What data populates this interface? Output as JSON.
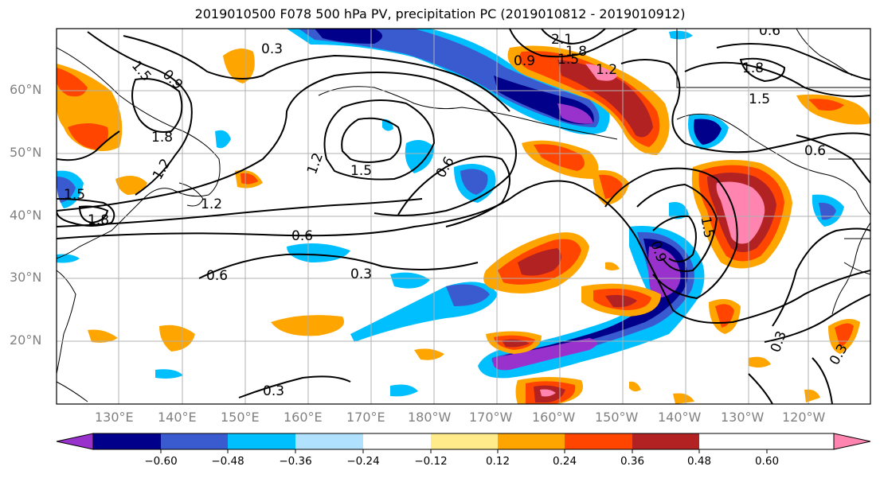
{
  "title": "2019010500 F078 500 hPa PV, precipitation PC (2019010812 - 2019010912)",
  "lat_labels": [
    "60°N",
    "50°N",
    "40°N",
    "30°N",
    "20°N"
  ],
  "lon_labels": [
    "130°E",
    "140°E",
    "150°E",
    "160°E",
    "170°E",
    "180°W",
    "170°W",
    "160°W",
    "150°W",
    "140°W",
    "130°W",
    "120°W"
  ],
  "contour_labels": [
    "0.3",
    "0.9",
    "1.5",
    "1.8",
    "2.1",
    "1.8",
    "1.5",
    "1.2",
    "0.9",
    "0.6",
    "1.5",
    "1.8",
    "1.2",
    "1.2",
    "1.5",
    "0.6",
    "1.2",
    "1.5",
    "0.6",
    "0.6",
    "0.3",
    "0.9",
    "0.3",
    "0.3",
    "0.3",
    "1.8",
    "1.5",
    "0.6"
  ],
  "colorbar": {
    "ticks": [
      "−0.60",
      "−0.48",
      "−0.36",
      "−0.24",
      "−0.12",
      "0.12",
      "0.24",
      "0.36",
      "0.48",
      "0.60"
    ],
    "colors": [
      "#9932CC",
      "#00008B",
      "#3A5BCF",
      "#00BFFF",
      "#B0E2FF",
      "#FFFFFF",
      "#FFEB8A",
      "#FFA500",
      "#FF4500",
      "#B22222",
      "#FF85B0"
    ]
  },
  "colors": {
    "neg_strong": "#9932CC",
    "neg_dark": "#00008B",
    "neg_mid": "#3A5BCF",
    "neg_light": "#00BFFF",
    "neg_pale": "#B0E2FF",
    "pos_pale": "#FFEB8A",
    "pos_light": "#FFA500",
    "pos_mid": "#FF4500",
    "pos_dark": "#B22222",
    "pos_strong": "#FF85B0"
  }
}
